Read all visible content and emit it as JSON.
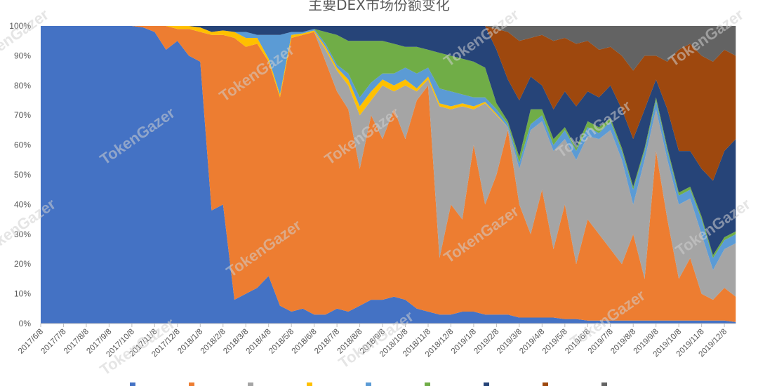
{
  "chart_data": {
    "type": "area",
    "stacked": "percent",
    "title": "主要DEX市场份额变化",
    "xlabel": "",
    "ylabel": "",
    "ylim": [
      0,
      100
    ],
    "y_ticks": [
      "0%",
      "10%",
      "20%",
      "30%",
      "40%",
      "50%",
      "60%",
      "70%",
      "80%",
      "90%",
      "100%"
    ],
    "x_ticks": [
      "2017/6/8",
      "2017/7/8",
      "2017/8/8",
      "2017/9/8",
      "2017/10/8",
      "2017/11/8",
      "2017/12/8",
      "2018/1/8",
      "2018/2/8",
      "2018/3/8",
      "2018/4/8",
      "2018/5/8",
      "2018/6/8",
      "2018/7/8",
      "2018/8/8",
      "2018/9/8",
      "2018/10/8",
      "2018/11/8",
      "2018/12/8",
      "2019/1/8",
      "2019/2/8",
      "2019/3/8",
      "2019/4/8",
      "2019/5/8",
      "2019/6/8",
      "2019/7/8",
      "2019/8/8",
      "2019/9/8",
      "2019/10/8",
      "2019/11/8",
      "2019/12/8"
    ],
    "grid": false,
    "legend": "bottom (cut off, unreadable)",
    "x": [
      "2017/6/8",
      "2017/6/23",
      "2017/7/8",
      "2017/7/23",
      "2017/8/8",
      "2017/8/23",
      "2017/9/8",
      "2017/9/23",
      "2017/10/8",
      "2017/10/23",
      "2017/11/8",
      "2017/11/23",
      "2017/12/8",
      "2017/12/23",
      "2018/1/8",
      "2018/1/23",
      "2018/2/8",
      "2018/2/23",
      "2018/3/8",
      "2018/3/23",
      "2018/4/8",
      "2018/4/23",
      "2018/5/8",
      "2018/5/23",
      "2018/6/8",
      "2018/6/23",
      "2018/7/8",
      "2018/7/23",
      "2018/8/8",
      "2018/8/23",
      "2018/9/8",
      "2018/9/23",
      "2018/10/8",
      "2018/10/23",
      "2018/11/8",
      "2018/11/23",
      "2018/12/8",
      "2018/12/23",
      "2019/1/8",
      "2019/1/23",
      "2019/2/8",
      "2019/2/23",
      "2019/3/8",
      "2019/3/23",
      "2019/4/8",
      "2019/4/23",
      "2019/5/8",
      "2019/5/23",
      "2019/6/8",
      "2019/6/23",
      "2019/7/8",
      "2019/7/23",
      "2019/8/8",
      "2019/8/23",
      "2019/9/8",
      "2019/9/23",
      "2019/10/8",
      "2019/10/23",
      "2019/11/8",
      "2019/11/23",
      "2019/12/8",
      "2019/12/23"
    ],
    "series": [
      {
        "color": "#4472C4",
        "values": [
          100,
          100,
          100,
          100,
          100,
          100,
          100,
          100,
          100,
          99.5,
          98,
          92,
          95,
          90,
          88,
          38,
          40,
          8,
          10,
          12,
          16,
          6,
          4,
          5,
          3,
          3,
          5,
          4,
          6,
          8,
          8,
          9,
          8,
          5,
          4,
          3,
          3,
          4,
          4,
          3,
          3,
          3,
          2,
          2,
          2,
          2,
          1.5,
          1.5,
          1,
          1,
          1,
          1,
          1,
          1,
          1,
          1,
          1,
          1,
          1,
          1,
          1,
          0.5
        ]
      },
      {
        "color": "#ED7D31",
        "values": [
          0,
          0,
          0,
          0,
          0,
          0,
          0,
          0,
          0,
          0.5,
          2,
          8,
          4,
          9,
          10,
          59,
          57,
          88,
          83,
          82,
          72,
          70,
          92,
          92,
          95,
          85,
          73,
          68,
          46,
          62,
          54,
          63,
          54,
          70,
          76,
          19,
          37,
          31,
          56,
          37,
          47,
          62,
          38,
          28,
          43,
          23,
          38.5,
          18.5,
          34,
          29,
          24,
          19,
          29,
          14,
          57,
          34,
          14,
          21,
          9,
          7,
          11,
          8.5
        ]
      },
      {
        "color": "#A5A5A5",
        "values": [
          0,
          0,
          0,
          0,
          0,
          0,
          0,
          0,
          0,
          0,
          0,
          0,
          0,
          0,
          0,
          0,
          0,
          0,
          0,
          0,
          0,
          0,
          0,
          0,
          0,
          4,
          7,
          8,
          18,
          5,
          18,
          6,
          18,
          3,
          2,
          51,
          32,
          38,
          12,
          34,
          20,
          1,
          12,
          35,
          23,
          33,
          22,
          35,
          28,
          32,
          40,
          35,
          10,
          40,
          14,
          20,
          25,
          20,
          20,
          10,
          13,
          18
        ]
      },
      {
        "color": "#FFC000",
        "values": [
          0,
          0,
          0,
          0,
          0,
          0,
          0,
          0,
          0,
          0,
          0,
          0,
          1,
          1,
          1.5,
          1,
          1.5,
          2,
          3,
          2,
          1,
          1,
          1,
          0.5,
          0.5,
          1,
          1,
          2,
          3,
          3,
          2,
          2,
          2,
          1,
          1,
          1,
          1,
          1,
          1,
          0.5,
          0.5,
          0,
          0,
          0,
          0,
          0,
          0,
          0,
          0,
          0,
          0,
          0,
          0,
          0,
          0,
          0,
          0,
          0,
          0,
          0,
          0,
          0
        ]
      },
      {
        "color": "#5B9BD5",
        "values": [
          0,
          0,
          0,
          0,
          0,
          0,
          0,
          0,
          0,
          0,
          0,
          0,
          0,
          0,
          0,
          0,
          0,
          0,
          2,
          1,
          8,
          20,
          1,
          0.5,
          0.5,
          1,
          1,
          2,
          3,
          3,
          2,
          4,
          4,
          5,
          3,
          5,
          5,
          3,
          3,
          1.5,
          1.5,
          1,
          2,
          2,
          2,
          2,
          3,
          3,
          3,
          2,
          3,
          3,
          5,
          3,
          3,
          3,
          3,
          3,
          5,
          4,
          3,
          3
        ]
      },
      {
        "color": "#70AD47",
        "values": [
          0,
          0,
          0,
          0,
          0,
          0,
          0,
          0,
          0,
          0,
          0,
          0,
          0,
          0,
          0,
          0,
          0,
          0,
          0,
          0,
          0,
          0,
          0,
          0,
          0,
          4,
          10,
          11,
          19,
          14,
          11,
          10,
          7,
          9,
          6,
          12,
          12,
          12,
          12,
          10,
          2,
          1,
          2,
          5,
          2,
          2,
          1,
          1,
          2,
          2,
          1,
          1,
          1,
          1,
          1,
          1,
          1,
          1,
          1,
          1,
          1,
          1
        ]
      },
      {
        "color": "#264478",
        "values": [
          0,
          0,
          0,
          0,
          0,
          0,
          0,
          0,
          0,
          0,
          0,
          0,
          0,
          0,
          0.5,
          2,
          1.5,
          2,
          2,
          3,
          3,
          3,
          2,
          2,
          1,
          2,
          3,
          5,
          5,
          5,
          5,
          6,
          7,
          7,
          8,
          9,
          10,
          11,
          12,
          14,
          18,
          14,
          19,
          11,
          8,
          10,
          12,
          14,
          10,
          10,
          11,
          13,
          16,
          13,
          6,
          13,
          14,
          12,
          16,
          25,
          29,
          31
        ]
      },
      {
        "color": "#9E480E",
        "values": [
          0,
          0,
          0,
          0,
          0,
          0,
          0,
          0,
          0,
          0,
          0,
          0,
          0,
          0,
          0,
          0,
          0,
          0,
          0,
          0,
          0,
          0,
          0,
          0,
          0,
          0,
          0,
          0,
          0,
          0,
          0,
          0,
          0,
          0,
          0,
          0,
          0,
          0,
          0,
          0,
          7,
          16,
          20,
          13,
          17,
          23,
          18,
          21,
          17,
          16,
          13,
          18,
          23,
          18,
          8,
          16,
          34,
          36,
          38,
          40,
          34,
          28
        ]
      },
      {
        "color": "#636363",
        "values": [
          0,
          0,
          0,
          0,
          0,
          0,
          0,
          0,
          0,
          0,
          0,
          0,
          0,
          0,
          0,
          0,
          0,
          0,
          0,
          0,
          0,
          0,
          0,
          0,
          0,
          0,
          0,
          0,
          0,
          0,
          0,
          0,
          0,
          0,
          0,
          0,
          0,
          0,
          0,
          0,
          1,
          2,
          5,
          4,
          3,
          5,
          4,
          6,
          5,
          8,
          7,
          10,
          15,
          10,
          10,
          12,
          8,
          6,
          10,
          12,
          8,
          10
        ]
      }
    ]
  },
  "watermark": "TokenGazer"
}
